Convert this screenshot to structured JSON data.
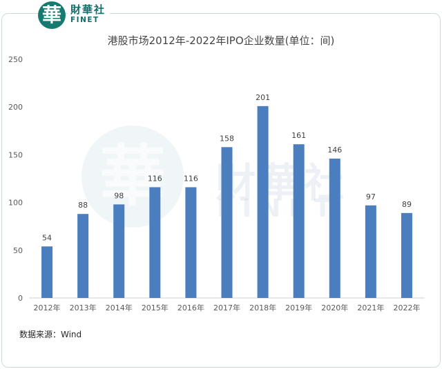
{
  "header": {
    "logo_glyph": "華",
    "logo_cn": "財華社",
    "logo_en": "FINET"
  },
  "chart_data": {
    "type": "bar",
    "title": "港股市场2012年-2022年IPO企业数量(单位：间)",
    "categories": [
      "2012年",
      "2013年",
      "2014年",
      "2015年",
      "2016年",
      "2017年",
      "2018年",
      "2019年",
      "2020年",
      "2021年",
      "2022年"
    ],
    "values": [
      54,
      88,
      98,
      116,
      116,
      158,
      201,
      161,
      146,
      97,
      89
    ],
    "ylim": [
      0,
      250
    ],
    "yticks": [
      0,
      50,
      100,
      150,
      200,
      250
    ],
    "grid": false,
    "bar_color": "#4a7ebf",
    "data_labels": true
  },
  "footer": {
    "source": "数据来源：Wind"
  },
  "watermark": {
    "glyph": "華",
    "cn": "財華社",
    "en": "FINET"
  }
}
